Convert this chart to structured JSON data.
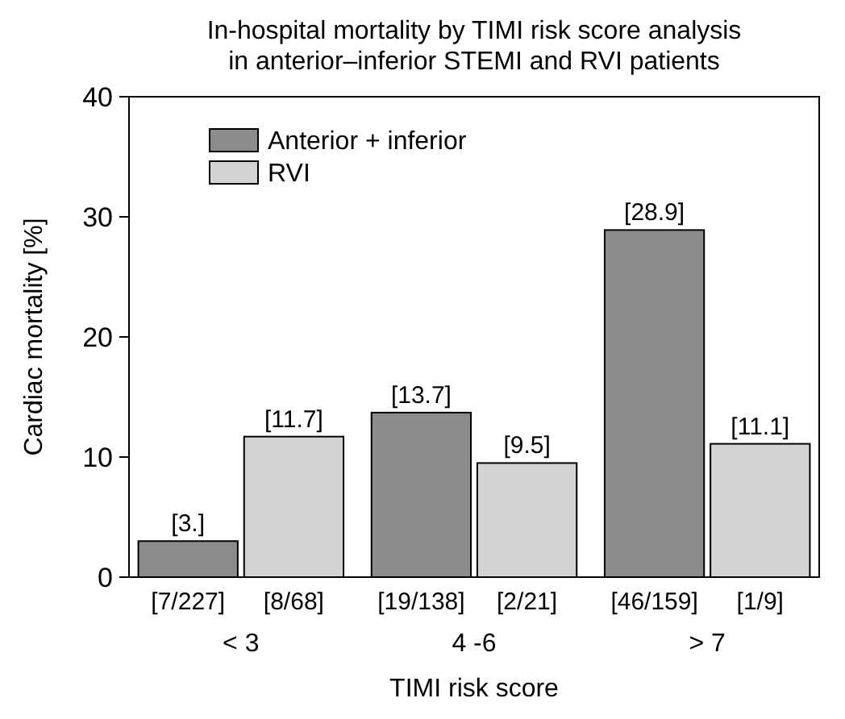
{
  "chart_data": {
    "type": "bar",
    "title": "In-hospital mortality by TIMI risk score analysis\nin anterior–inferior STEMI and RVI patients",
    "xlabel": "TIMI risk score",
    "ylabel": "Cardiac mortality [%]",
    "categories": [
      "< 3",
      "4 -6",
      "> 7"
    ],
    "series": [
      {
        "name": "Anterior + inferior",
        "color": "#8c8c8c",
        "values": [
          3,
          13.7,
          28.9
        ],
        "value_labels": [
          "[3.]",
          "[13.7]",
          "[28.9]"
        ]
      },
      {
        "name": "RVI",
        "color": "#d3d3d3",
        "values": [
          11.7,
          9.5,
          11.1
        ],
        "value_labels": [
          "[11.7]",
          "[9.5]",
          "[11.1]"
        ]
      }
    ],
    "annotations": [
      "[7/227]",
      "[8/68]",
      "[19/138]",
      "[2/21]",
      "[46/159]",
      "[1/9]"
    ],
    "ylim": [
      0,
      40
    ],
    "yticks": [
      0,
      10,
      20,
      30,
      40
    ],
    "grid": false,
    "legend": "top left"
  }
}
